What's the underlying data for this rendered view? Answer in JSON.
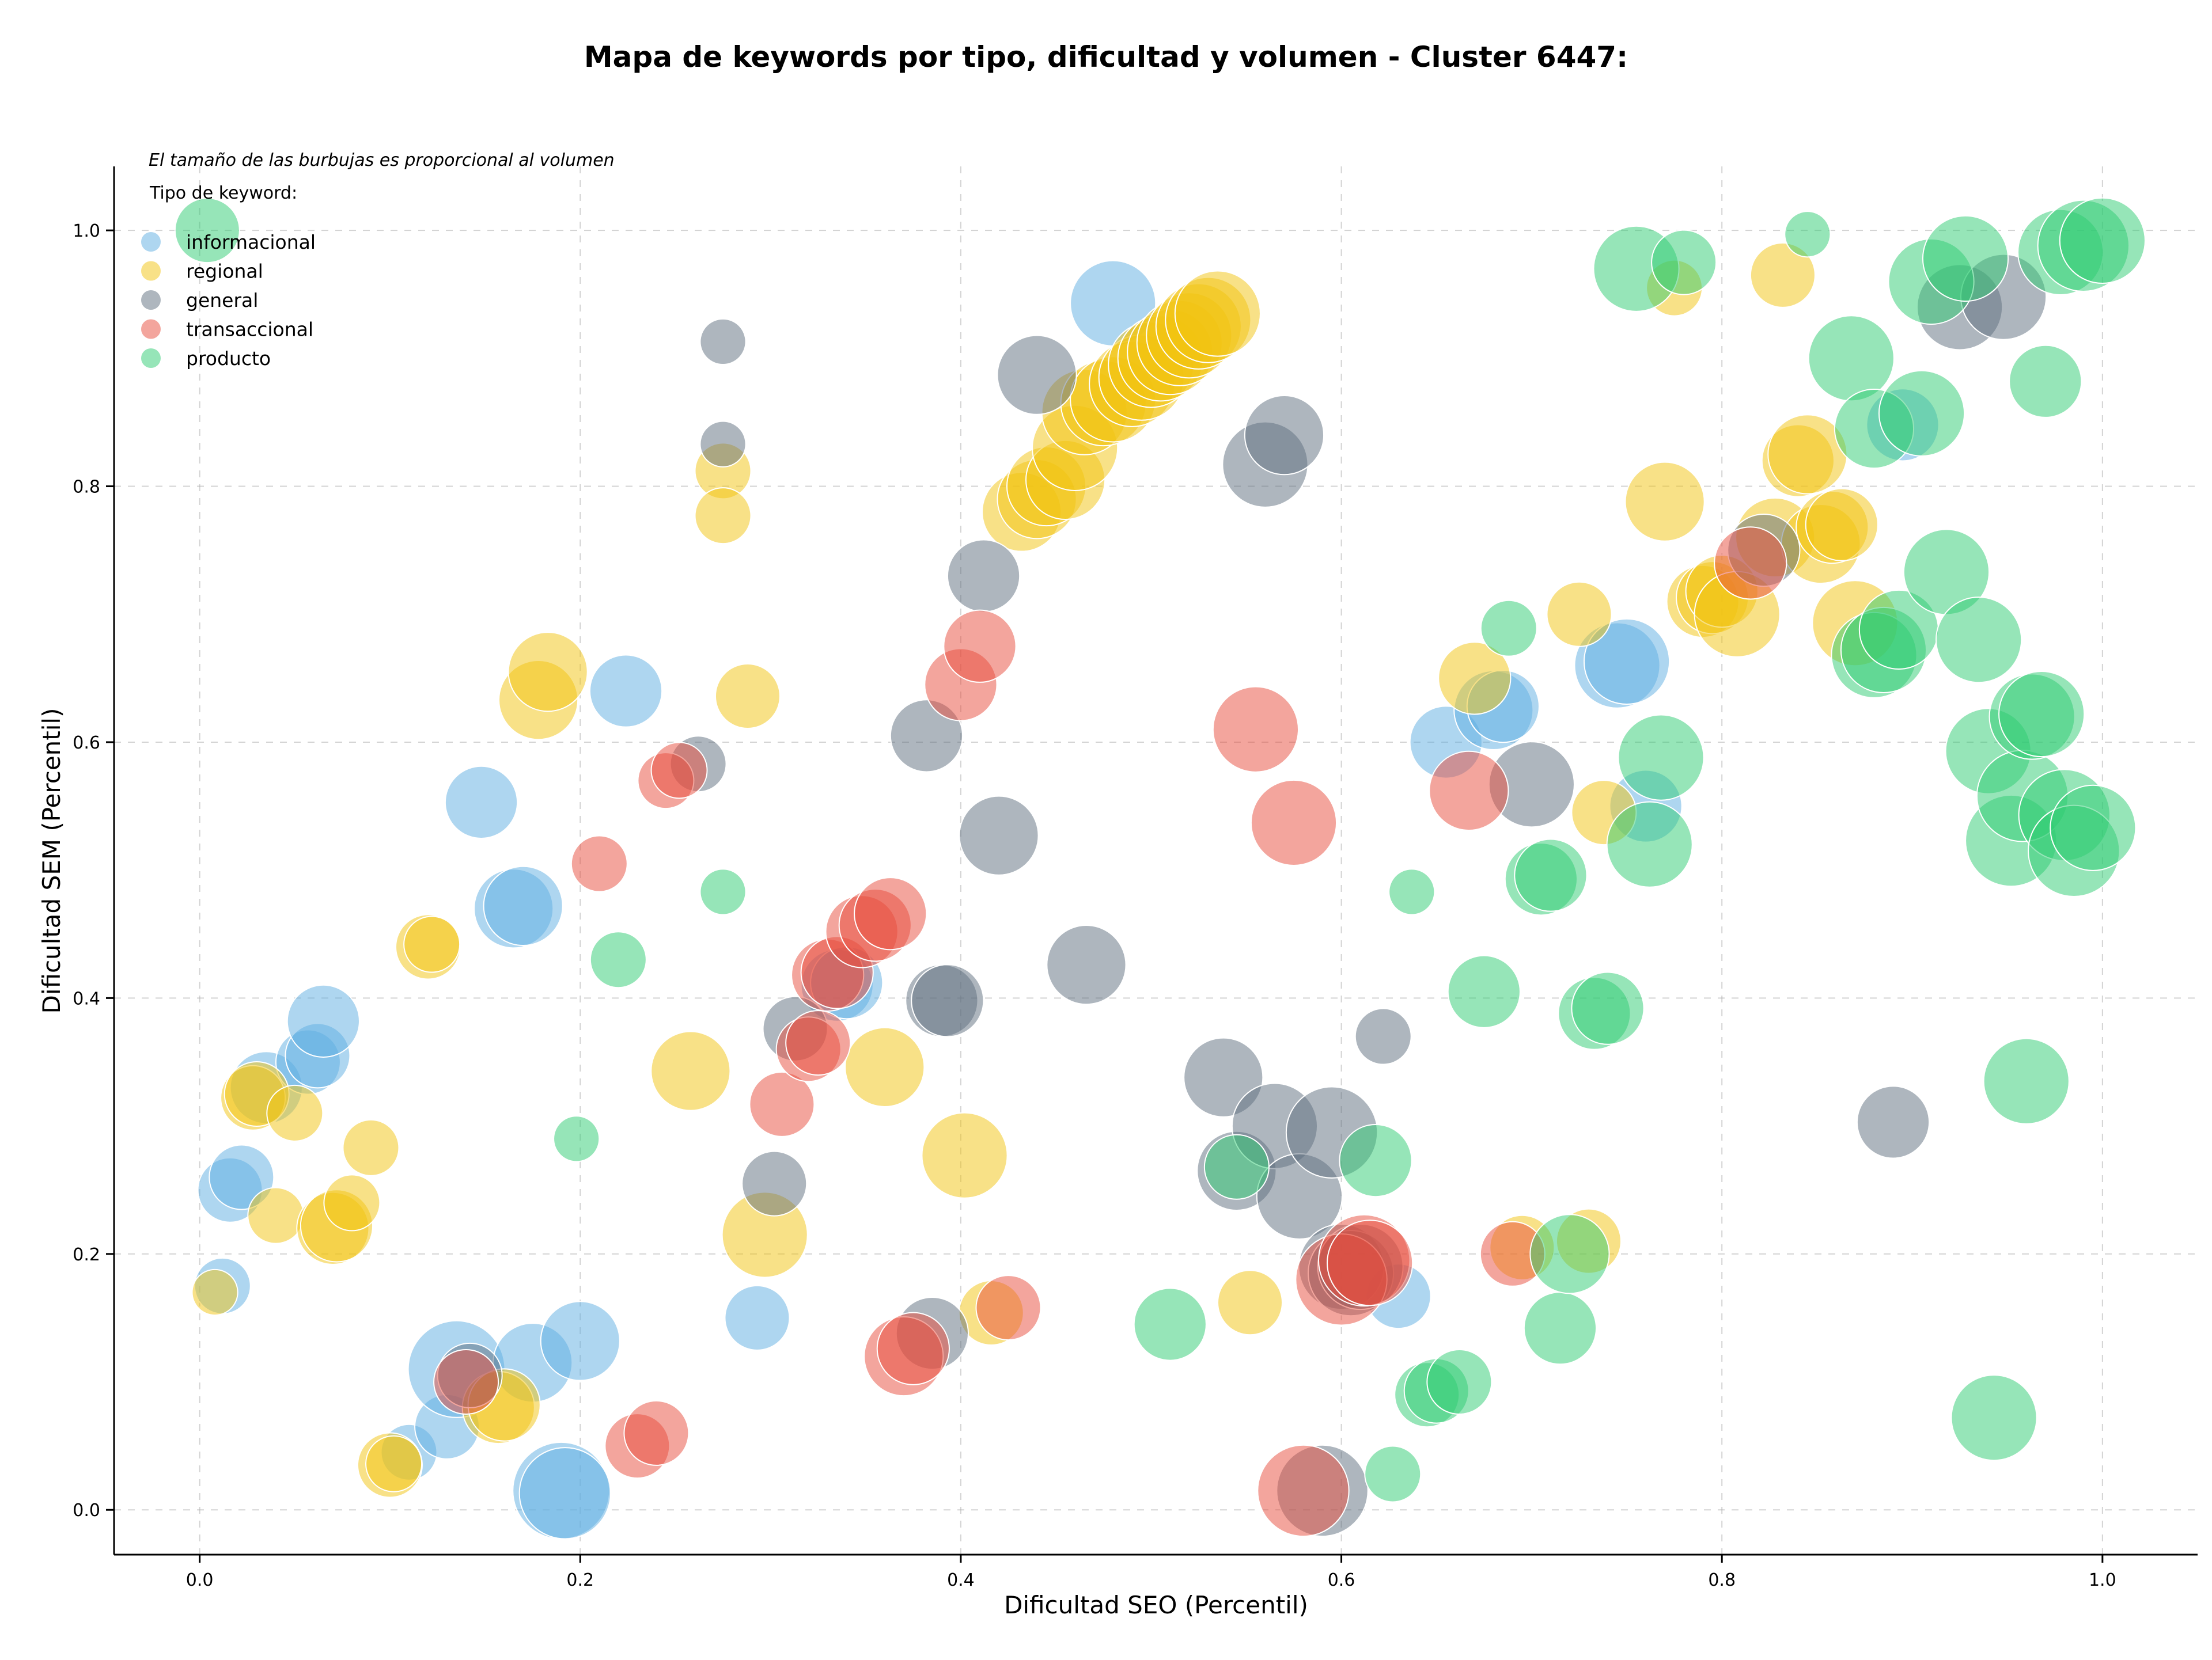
{
  "chart_data": {
    "type": "scatter",
    "title": "Mapa de keywords por tipo, dificultad y volumen - Cluster 6447:",
    "xlabel": "Dificultad SEO (Percentil)",
    "ylabel": "Dificultad SEM (Percentil)",
    "xlim": [
      -0.045,
      1.05
    ],
    "ylim": [
      -0.035,
      1.05
    ],
    "xticks": [
      "0.0",
      "0.2",
      "0.4",
      "0.6",
      "0.8",
      "1.0"
    ],
    "yticks": [
      "0.0",
      "0.2",
      "0.4",
      "0.6",
      "0.8",
      "1.0"
    ],
    "grid": true,
    "note": "El tamaño de las burbujas es proporcional al volumen",
    "legend": {
      "title": "Tipo de keyword:",
      "placement": "top-left"
    },
    "series": [
      {
        "name": "informacional",
        "color": "#5DADE2",
        "points": [
          [
            0.012,
            0.175,
            3
          ],
          [
            0.016,
            0.25,
            4
          ],
          [
            0.022,
            0.26,
            4
          ],
          [
            0.035,
            0.33,
            5
          ],
          [
            0.057,
            0.35,
            4
          ],
          [
            0.062,
            0.355,
            4
          ],
          [
            0.065,
            0.382,
            5
          ],
          [
            0.11,
            0.045,
            3
          ],
          [
            0.13,
            0.065,
            4
          ],
          [
            0.135,
            0.11,
            9
          ],
          [
            0.148,
            0.553,
            5
          ],
          [
            0.165,
            0.47,
            6
          ],
          [
            0.17,
            0.472,
            6
          ],
          [
            0.175,
            0.115,
            6
          ],
          [
            0.19,
            0.015,
            9
          ],
          [
            0.192,
            0.013,
            8
          ],
          [
            0.2,
            0.132,
            6
          ],
          [
            0.224,
            0.64,
            5
          ],
          [
            0.293,
            0.15,
            4
          ],
          [
            0.335,
            0.41,
            5
          ],
          [
            0.34,
            0.412,
            5
          ],
          [
            0.48,
            0.943,
            7
          ],
          [
            0.63,
            0.167,
            4
          ],
          [
            0.655,
            0.6,
            5
          ],
          [
            0.68,
            0.625,
            6
          ],
          [
            0.685,
            0.628,
            5
          ],
          [
            0.745,
            0.66,
            7
          ],
          [
            0.75,
            0.663,
            7
          ],
          [
            0.76,
            0.55,
            5
          ],
          [
            0.895,
            0.848,
            5
          ]
        ]
      },
      {
        "name": "regional",
        "color": "#F1C40F",
        "points": [
          [
            0.008,
            0.17,
            2
          ],
          [
            0.028,
            0.322,
            4
          ],
          [
            0.03,
            0.325,
            4
          ],
          [
            0.04,
            0.23,
            3
          ],
          [
            0.05,
            0.31,
            3
          ],
          [
            0.07,
            0.22,
            5
          ],
          [
            0.072,
            0.222,
            5
          ],
          [
            0.08,
            0.24,
            3
          ],
          [
            0.09,
            0.283,
            3
          ],
          [
            0.1,
            0.035,
            4
          ],
          [
            0.102,
            0.036,
            3
          ],
          [
            0.12,
            0.44,
            4
          ],
          [
            0.122,
            0.442,
            3
          ],
          [
            0.157,
            0.08,
            5
          ],
          [
            0.16,
            0.082,
            5
          ],
          [
            0.178,
            0.633,
            6
          ],
          [
            0.183,
            0.655,
            6
          ],
          [
            0.258,
            0.343,
            6
          ],
          [
            0.275,
            0.812,
            3
          ],
          [
            0.275,
            0.777,
            3
          ],
          [
            0.288,
            0.636,
            4
          ],
          [
            0.297,
            0.215,
            7
          ],
          [
            0.36,
            0.346,
            6
          ],
          [
            0.402,
            0.277,
            7
          ],
          [
            0.416,
            0.154,
            4
          ],
          [
            0.432,
            0.78,
            6
          ],
          [
            0.44,
            0.79,
            6
          ],
          [
            0.445,
            0.8,
            6
          ],
          [
            0.455,
            0.805,
            6
          ],
          [
            0.46,
            0.83,
            7
          ],
          [
            0.465,
            0.858,
            7
          ],
          [
            0.475,
            0.865,
            7
          ],
          [
            0.48,
            0.868,
            7
          ],
          [
            0.49,
            0.88,
            7
          ],
          [
            0.495,
            0.885,
            7
          ],
          [
            0.5,
            0.895,
            7
          ],
          [
            0.505,
            0.9,
            7
          ],
          [
            0.51,
            0.905,
            7
          ],
          [
            0.515,
            0.912,
            7
          ],
          [
            0.52,
            0.918,
            7
          ],
          [
            0.525,
            0.925,
            7
          ],
          [
            0.53,
            0.93,
            7
          ],
          [
            0.535,
            0.935,
            7
          ],
          [
            0.552,
            0.162,
            4
          ],
          [
            0.67,
            0.65,
            5
          ],
          [
            0.695,
            0.205,
            4
          ],
          [
            0.725,
            0.7,
            4
          ],
          [
            0.73,
            0.21,
            4
          ],
          [
            0.738,
            0.545,
            4
          ],
          [
            0.77,
            0.788,
            6
          ],
          [
            0.775,
            0.955,
            3
          ],
          [
            0.79,
            0.71,
            5
          ],
          [
            0.795,
            0.713,
            5
          ],
          [
            0.8,
            0.718,
            5
          ],
          [
            0.808,
            0.7,
            7
          ],
          [
            0.828,
            0.76,
            6
          ],
          [
            0.832,
            0.965,
            4
          ],
          [
            0.84,
            0.82,
            5
          ],
          [
            0.845,
            0.825,
            6
          ],
          [
            0.852,
            0.755,
            6
          ],
          [
            0.858,
            0.768,
            5
          ],
          [
            0.863,
            0.77,
            5
          ],
          [
            0.87,
            0.693,
            7
          ]
        ]
      },
      {
        "name": "general",
        "color": "#5D6D7E",
        "points": [
          [
            0.142,
            0.105,
            4
          ],
          [
            0.262,
            0.583,
            3
          ],
          [
            0.275,
            0.913,
            2
          ],
          [
            0.275,
            0.833,
            2
          ],
          [
            0.302,
            0.255,
            4
          ],
          [
            0.313,
            0.376,
            4
          ],
          [
            0.382,
            0.605,
            5
          ],
          [
            0.385,
            0.138,
            5
          ],
          [
            0.39,
            0.398,
            5
          ],
          [
            0.393,
            0.398,
            5
          ],
          [
            0.412,
            0.73,
            5
          ],
          [
            0.42,
            0.527,
            6
          ],
          [
            0.44,
            0.887,
            6
          ],
          [
            0.466,
            0.426,
            6
          ],
          [
            0.538,
            0.338,
            6
          ],
          [
            0.545,
            0.265,
            6
          ],
          [
            0.56,
            0.817,
            7
          ],
          [
            0.565,
            0.3,
            7
          ],
          [
            0.57,
            0.84,
            6
          ],
          [
            0.578,
            0.245,
            7
          ],
          [
            0.59,
            0.015,
            8
          ],
          [
            0.595,
            0.295,
            8
          ],
          [
            0.6,
            0.19,
            7
          ],
          [
            0.605,
            0.185,
            7
          ],
          [
            0.61,
            0.19,
            7
          ],
          [
            0.622,
            0.37,
            3
          ],
          [
            0.7,
            0.567,
            7
          ],
          [
            0.822,
            0.75,
            5
          ],
          [
            0.89,
            0.303,
            5
          ],
          [
            0.925,
            0.94,
            7
          ],
          [
            0.948,
            0.948,
            7
          ]
        ]
      },
      {
        "name": "transaccional",
        "color": "#E74C3C",
        "points": [
          [
            0.14,
            0.1,
            4
          ],
          [
            0.21,
            0.505,
            3
          ],
          [
            0.23,
            0.05,
            4
          ],
          [
            0.24,
            0.06,
            4
          ],
          [
            0.245,
            0.57,
            3
          ],
          [
            0.252,
            0.578,
            3
          ],
          [
            0.306,
            0.317,
            4
          ],
          [
            0.32,
            0.36,
            4
          ],
          [
            0.325,
            0.365,
            4
          ],
          [
            0.33,
            0.418,
            5
          ],
          [
            0.335,
            0.42,
            5
          ],
          [
            0.348,
            0.452,
            5
          ],
          [
            0.355,
            0.457,
            5
          ],
          [
            0.363,
            0.466,
            5
          ],
          [
            0.37,
            0.12,
            6
          ],
          [
            0.375,
            0.126,
            5
          ],
          [
            0.4,
            0.645,
            5
          ],
          [
            0.41,
            0.675,
            5
          ],
          [
            0.425,
            0.158,
            4
          ],
          [
            0.555,
            0.61,
            7
          ],
          [
            0.575,
            0.537,
            7
          ],
          [
            0.58,
            0.015,
            8
          ],
          [
            0.6,
            0.18,
            8
          ],
          [
            0.612,
            0.195,
            8
          ],
          [
            0.615,
            0.193,
            7
          ],
          [
            0.667,
            0.562,
            6
          ],
          [
            0.69,
            0.2,
            4
          ],
          [
            0.815,
            0.74,
            5
          ]
        ]
      },
      {
        "name": "producto",
        "color": "#2ECC71",
        "points": [
          [
            0.004,
            1.0,
            4
          ],
          [
            0.198,
            0.29,
            2
          ],
          [
            0.22,
            0.43,
            3
          ],
          [
            0.275,
            0.483,
            2
          ],
          [
            0.51,
            0.145,
            5
          ],
          [
            0.545,
            0.268,
            4
          ],
          [
            0.618,
            0.273,
            5
          ],
          [
            0.627,
            0.028,
            3
          ],
          [
            0.637,
            0.483,
            2
          ],
          [
            0.645,
            0.09,
            4
          ],
          [
            0.65,
            0.093,
            4
          ],
          [
            0.662,
            0.1,
            4
          ],
          [
            0.675,
            0.405,
            5
          ],
          [
            0.688,
            0.689,
            3
          ],
          [
            0.705,
            0.493,
            5
          ],
          [
            0.71,
            0.496,
            5
          ],
          [
            0.715,
            0.142,
            5
          ],
          [
            0.72,
            0.2,
            6
          ],
          [
            0.733,
            0.388,
            5
          ],
          [
            0.74,
            0.392,
            5
          ],
          [
            0.755,
            0.97,
            7
          ],
          [
            0.762,
            0.52,
            7
          ],
          [
            0.768,
            0.588,
            7
          ],
          [
            0.78,
            0.975,
            4
          ],
          [
            0.845,
            0.997,
            2
          ],
          [
            0.868,
            0.9,
            7
          ],
          [
            0.88,
            0.845,
            6
          ],
          [
            0.88,
            0.668,
            7
          ],
          [
            0.885,
            0.672,
            7
          ],
          [
            0.893,
            0.688,
            6
          ],
          [
            0.905,
            0.857,
            7
          ],
          [
            0.91,
            0.96,
            7
          ],
          [
            0.918,
            0.733,
            7
          ],
          [
            0.928,
            0.978,
            7
          ],
          [
            0.935,
            0.68,
            7
          ],
          [
            0.94,
            0.593,
            7
          ],
          [
            0.943,
            0.072,
            7
          ],
          [
            0.952,
            0.523,
            8
          ],
          [
            0.958,
            0.558,
            8
          ],
          [
            0.96,
            0.335,
            7
          ],
          [
            0.963,
            0.62,
            7
          ],
          [
            0.968,
            0.622,
            7
          ],
          [
            0.97,
            0.882,
            5
          ],
          [
            0.978,
            0.983,
            7
          ],
          [
            0.98,
            0.543,
            8
          ],
          [
            0.985,
            0.515,
            8
          ],
          [
            0.99,
            0.988,
            8
          ],
          [
            0.995,
            0.533,
            7
          ],
          [
            1.0,
            0.992,
            7
          ]
        ]
      }
    ]
  }
}
